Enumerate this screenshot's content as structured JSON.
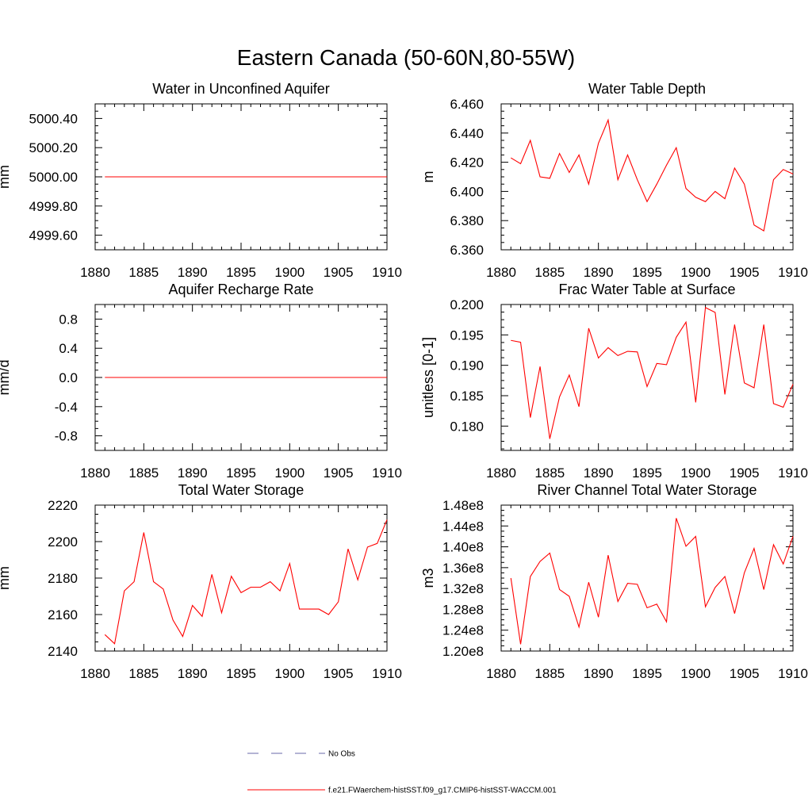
{
  "figure": {
    "title": "Eastern Canada (50-60N,80-55W)"
  },
  "legend": [
    {
      "label": "No Obs",
      "color": "#6a6aa8",
      "style": "dashed"
    },
    {
      "label": "f.e21.FWaerchem-histSST.f09_g17.CMIP6-histSST-WACCM.001",
      "color": "#ff0000",
      "style": "solid"
    }
  ],
  "chart_data": [
    {
      "type": "line",
      "title": "Water in Unconfined Aquifer",
      "xlabel": "",
      "ylabel": "mm",
      "xlim": [
        1880,
        1910
      ],
      "ylim": [
        4999.5,
        5000.5
      ],
      "x_ticks": [
        1880,
        1885,
        1890,
        1895,
        1900,
        1905,
        1910
      ],
      "y_ticks": [
        4999.6,
        4999.8,
        5000.0,
        5000.2,
        5000.4
      ],
      "y_tick_labels": [
        "4999.60",
        "4999.80",
        "5000.00",
        "5000.20",
        "5000.40"
      ],
      "x": [
        1881,
        1882,
        1883,
        1884,
        1885,
        1886,
        1887,
        1888,
        1889,
        1890,
        1891,
        1892,
        1893,
        1894,
        1895,
        1896,
        1897,
        1898,
        1899,
        1900,
        1901,
        1902,
        1903,
        1904,
        1905,
        1906,
        1907,
        1908,
        1909,
        1910
      ],
      "series": [
        {
          "color": "#ff0000",
          "values": [
            5000,
            5000,
            5000,
            5000,
            5000,
            5000,
            5000,
            5000,
            5000,
            5000,
            5000,
            5000,
            5000,
            5000,
            5000,
            5000,
            5000,
            5000,
            5000,
            5000,
            5000,
            5000,
            5000,
            5000,
            5000,
            5000,
            5000,
            5000,
            5000,
            5000
          ]
        }
      ]
    },
    {
      "type": "line",
      "title": "Water Table Depth",
      "xlabel": "",
      "ylabel": "m",
      "xlim": [
        1880,
        1910
      ],
      "ylim": [
        6.36,
        6.46
      ],
      "x_ticks": [
        1880,
        1885,
        1890,
        1895,
        1900,
        1905,
        1910
      ],
      "y_ticks": [
        6.36,
        6.38,
        6.4,
        6.42,
        6.44,
        6.46
      ],
      "y_tick_labels": [
        "6.360",
        "6.380",
        "6.400",
        "6.420",
        "6.440",
        "6.460"
      ],
      "x": [
        1881,
        1882,
        1883,
        1884,
        1885,
        1886,
        1887,
        1888,
        1889,
        1890,
        1891,
        1892,
        1893,
        1894,
        1895,
        1896,
        1897,
        1898,
        1899,
        1900,
        1901,
        1902,
        1903,
        1904,
        1905,
        1906,
        1907,
        1908,
        1909,
        1910
      ],
      "series": [
        {
          "color": "#ff0000",
          "values": [
            6.423,
            6.419,
            6.435,
            6.41,
            6.409,
            6.426,
            6.413,
            6.425,
            6.405,
            6.433,
            6.449,
            6.408,
            6.425,
            6.408,
            6.393,
            6.405,
            6.418,
            6.43,
            6.402,
            6.396,
            6.393,
            6.4,
            6.395,
            6.416,
            6.405,
            6.377,
            6.373,
            6.408,
            6.415,
            6.412
          ]
        }
      ]
    },
    {
      "type": "line",
      "title": "Aquifer Recharge Rate",
      "xlabel": "",
      "ylabel": "mm/d",
      "xlim": [
        1880,
        1910
      ],
      "ylim": [
        -1.0,
        1.0
      ],
      "x_ticks": [
        1880,
        1885,
        1890,
        1895,
        1900,
        1905,
        1910
      ],
      "y_ticks": [
        -0.8,
        -0.4,
        0.0,
        0.4,
        0.8
      ],
      "y_tick_labels": [
        "-0.8",
        "-0.4",
        "0.0",
        "0.4",
        "0.8"
      ],
      "x": [
        1881,
        1882,
        1883,
        1884,
        1885,
        1886,
        1887,
        1888,
        1889,
        1890,
        1891,
        1892,
        1893,
        1894,
        1895,
        1896,
        1897,
        1898,
        1899,
        1900,
        1901,
        1902,
        1903,
        1904,
        1905,
        1906,
        1907,
        1908,
        1909,
        1910
      ],
      "series": [
        {
          "color": "#ff0000",
          "values": [
            0,
            0,
            0,
            0,
            0,
            0,
            0,
            0,
            0,
            0,
            0,
            0,
            0,
            0,
            0,
            0,
            0,
            0,
            0,
            0,
            0,
            0,
            0,
            0,
            0,
            0,
            0,
            0,
            0,
            0
          ]
        }
      ]
    },
    {
      "type": "line",
      "title": "Frac Water Table at Surface",
      "xlabel": "",
      "ylabel": "unitless [0-1]",
      "xlim": [
        1880,
        1910
      ],
      "ylim": [
        0.176,
        0.2
      ],
      "x_ticks": [
        1880,
        1885,
        1890,
        1895,
        1900,
        1905,
        1910
      ],
      "y_ticks": [
        0.18,
        0.185,
        0.19,
        0.195,
        0.2
      ],
      "y_tick_labels": [
        "0.180",
        "0.185",
        "0.190",
        "0.195",
        "0.200"
      ],
      "x": [
        1881,
        1882,
        1883,
        1884,
        1885,
        1886,
        1887,
        1888,
        1889,
        1890,
        1891,
        1892,
        1893,
        1894,
        1895,
        1896,
        1897,
        1898,
        1899,
        1900,
        1901,
        1902,
        1903,
        1904,
        1905,
        1906,
        1907,
        1908,
        1909,
        1910
      ],
      "series": [
        {
          "color": "#ff0000",
          "values": [
            0.1941,
            0.1938,
            0.1814,
            0.1898,
            0.1779,
            0.1848,
            0.1884,
            0.1832,
            0.1961,
            0.1912,
            0.1929,
            0.1916,
            0.1923,
            0.1922,
            0.1865,
            0.1903,
            0.1901,
            0.1946,
            0.1971,
            0.1839,
            0.1995,
            0.1987,
            0.1852,
            0.1967,
            0.1871,
            0.1863,
            0.1967,
            0.1837,
            0.1831,
            0.1869
          ]
        }
      ]
    },
    {
      "type": "line",
      "title": "Total Water Storage",
      "xlabel": "",
      "ylabel": "mm",
      "xlim": [
        1880,
        1910
      ],
      "ylim": [
        2140,
        2220
      ],
      "x_ticks": [
        1880,
        1885,
        1890,
        1895,
        1900,
        1905,
        1910
      ],
      "y_ticks": [
        2140,
        2160,
        2180,
        2200,
        2220
      ],
      "y_tick_labels": [
        "2140",
        "2160",
        "2180",
        "2200",
        "2220"
      ],
      "x": [
        1881,
        1882,
        1883,
        1884,
        1885,
        1886,
        1887,
        1888,
        1889,
        1890,
        1891,
        1892,
        1893,
        1894,
        1895,
        1896,
        1897,
        1898,
        1899,
        1900,
        1901,
        1902,
        1903,
        1904,
        1905,
        1906,
        1907,
        1908,
        1909,
        1910
      ],
      "series": [
        {
          "color": "#ff0000",
          "values": [
            2149,
            2144,
            2173,
            2178,
            2205,
            2178,
            2174,
            2157,
            2148,
            2165,
            2159,
            2182,
            2161,
            2181,
            2172,
            2175,
            2175,
            2178,
            2173,
            2188,
            2163,
            2163,
            2163,
            2160,
            2167,
            2196,
            2179,
            2197,
            2199,
            2212
          ]
        }
      ]
    },
    {
      "type": "line",
      "title": "River Channel Total Water Storage",
      "xlabel": "",
      "ylabel": "m3",
      "xlim": [
        1880,
        1910
      ],
      "ylim": [
        120000000.0,
        148000000.0
      ],
      "x_ticks": [
        1880,
        1885,
        1890,
        1895,
        1900,
        1905,
        1910
      ],
      "y_ticks": [
        120000000.0,
        124000000.0,
        128000000.0,
        132000000.0,
        136000000.0,
        140000000.0,
        144000000.0,
        148000000.0
      ],
      "y_tick_labels": [
        "1.20e8",
        "1.24e8",
        "1.28e8",
        "1.32e8",
        "1.36e8",
        "1.40e8",
        "1.44e8",
        "1.48e8"
      ],
      "x": [
        1881,
        1882,
        1883,
        1884,
        1885,
        1886,
        1887,
        1888,
        1889,
        1890,
        1891,
        1892,
        1893,
        1894,
        1895,
        1896,
        1897,
        1898,
        1899,
        1900,
        1901,
        1902,
        1903,
        1904,
        1905,
        1906,
        1907,
        1908,
        1909,
        1910
      ],
      "series": [
        {
          "color": "#ff0000",
          "values": [
            134000000.0,
            121300000.0,
            134300000.0,
            137200000.0,
            138800000.0,
            131800000.0,
            130500000.0,
            124600000.0,
            133200000.0,
            126500000.0,
            138400000.0,
            129500000.0,
            133000000.0,
            132800000.0,
            128300000.0,
            129000000.0,
            125600000.0,
            145500000.0,
            140100000.0,
            142000000.0,
            128500000.0,
            132200000.0,
            134300000.0,
            127200000.0,
            135000000.0,
            139700000.0,
            131800000.0,
            140400000.0,
            136700000.0,
            142000000.0
          ]
        }
      ]
    }
  ]
}
